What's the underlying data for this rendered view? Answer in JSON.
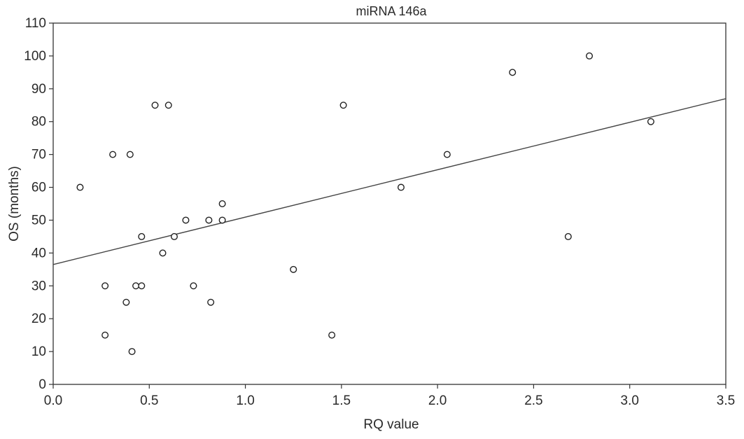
{
  "chart_data": {
    "type": "scatter",
    "title": "miRNA 146a",
    "xlabel": "RQ value",
    "ylabel": "OS (months)",
    "xlim": [
      0.0,
      3.5
    ],
    "ylim": [
      0,
      110
    ],
    "x_ticks": [
      "0.0",
      "0.5",
      "1.0",
      "1.5",
      "2.0",
      "2.5",
      "3.0",
      "3.5"
    ],
    "y_ticks": [
      "0",
      "10",
      "20",
      "30",
      "40",
      "50",
      "60",
      "70",
      "80",
      "90",
      "100",
      "110"
    ],
    "grid": false,
    "marker": "open-circle",
    "series": [
      {
        "points": [
          [
            0.14,
            60
          ],
          [
            0.27,
            30
          ],
          [
            0.27,
            15
          ],
          [
            0.31,
            70
          ],
          [
            0.38,
            25
          ],
          [
            0.4,
            70
          ],
          [
            0.41,
            10
          ],
          [
            0.43,
            30
          ],
          [
            0.46,
            45
          ],
          [
            0.46,
            30
          ],
          [
            0.53,
            85
          ],
          [
            0.57,
            40
          ],
          [
            0.6,
            85
          ],
          [
            0.63,
            45
          ],
          [
            0.69,
            50
          ],
          [
            0.73,
            30
          ],
          [
            0.81,
            50
          ],
          [
            0.82,
            25
          ],
          [
            0.88,
            55
          ],
          [
            0.88,
            50
          ],
          [
            1.25,
            35
          ],
          [
            1.45,
            15
          ],
          [
            1.51,
            85
          ],
          [
            1.81,
            60
          ],
          [
            2.05,
            70
          ],
          [
            2.39,
            95
          ],
          [
            2.68,
            45
          ],
          [
            2.79,
            100
          ],
          [
            3.11,
            80
          ]
        ]
      }
    ],
    "fit_line": {
      "type": "linear",
      "x": [
        0.0,
        3.5
      ],
      "y": [
        36.5,
        87
      ]
    },
    "colors": {
      "axis": "#333333",
      "marker_stroke": "#222222",
      "fit_line": "#444444"
    }
  }
}
